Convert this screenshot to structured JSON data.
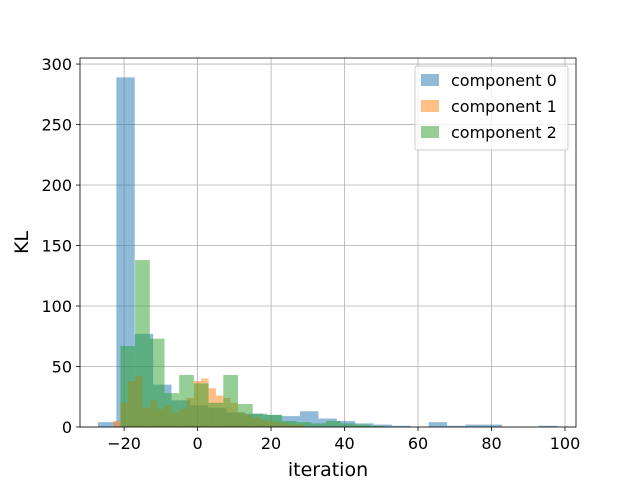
{
  "chart_data": {
    "type": "histogram",
    "xlabel": "iteration",
    "ylabel": "KL",
    "xlim": [
      -32,
      103
    ],
    "ylim": [
      0,
      305
    ],
    "xticks": [
      -20,
      0,
      20,
      40,
      60,
      80,
      100
    ],
    "yticks": [
      0,
      50,
      100,
      150,
      200,
      250,
      300
    ],
    "grid": true,
    "legend_position": "top-right",
    "series": [
      {
        "name": "component 0",
        "color": "#1f77b4",
        "alpha": 0.5,
        "bin_edges": [
          -27.1,
          -22.1,
          -17.1,
          -12.1,
          -7.1,
          -2.1,
          2.9,
          7.9,
          12.9,
          17.9,
          22.9,
          27.9,
          32.9,
          37.9,
          42.9,
          47.9,
          52.9,
          57.9,
          62.9,
          67.9,
          72.9,
          77.9,
          82.9,
          87.9,
          92.9,
          97.9
        ],
        "counts": [
          4,
          289,
          77,
          35,
          22,
          18,
          16,
          12,
          11,
          10,
          9,
          13,
          7,
          5,
          3,
          2,
          1,
          0,
          4,
          1,
          2,
          2,
          0,
          0,
          1
        ]
      },
      {
        "name": "component 1",
        "color": "#ff7f0e",
        "alpha": 0.5,
        "bin_edges": [
          -23,
          -21,
          -19,
          -17,
          -15,
          -13,
          -11,
          -9,
          -7,
          -5,
          -3,
          -1,
          1,
          3,
          5,
          7,
          9,
          11,
          13,
          15,
          17,
          19,
          21,
          23,
          25,
          27,
          29
        ],
        "counts": [
          5,
          20,
          38,
          42,
          16,
          22,
          15,
          18,
          12,
          15,
          24,
          38,
          40,
          32,
          26,
          24,
          20,
          12,
          10,
          8,
          6,
          5,
          4,
          3,
          2,
          2
        ]
      },
      {
        "name": "component 2",
        "color": "#2ca02c",
        "alpha": 0.5,
        "bin_edges": [
          -21,
          -17,
          -13,
          -9,
          -5,
          -1,
          3,
          7,
          11,
          15,
          19,
          23,
          27,
          31,
          35,
          39,
          43,
          47,
          51
        ],
        "counts": [
          67,
          138,
          73,
          28,
          43,
          36,
          20,
          43,
          19,
          11,
          10,
          5,
          4,
          3,
          5,
          3,
          2,
          1
        ]
      }
    ]
  }
}
